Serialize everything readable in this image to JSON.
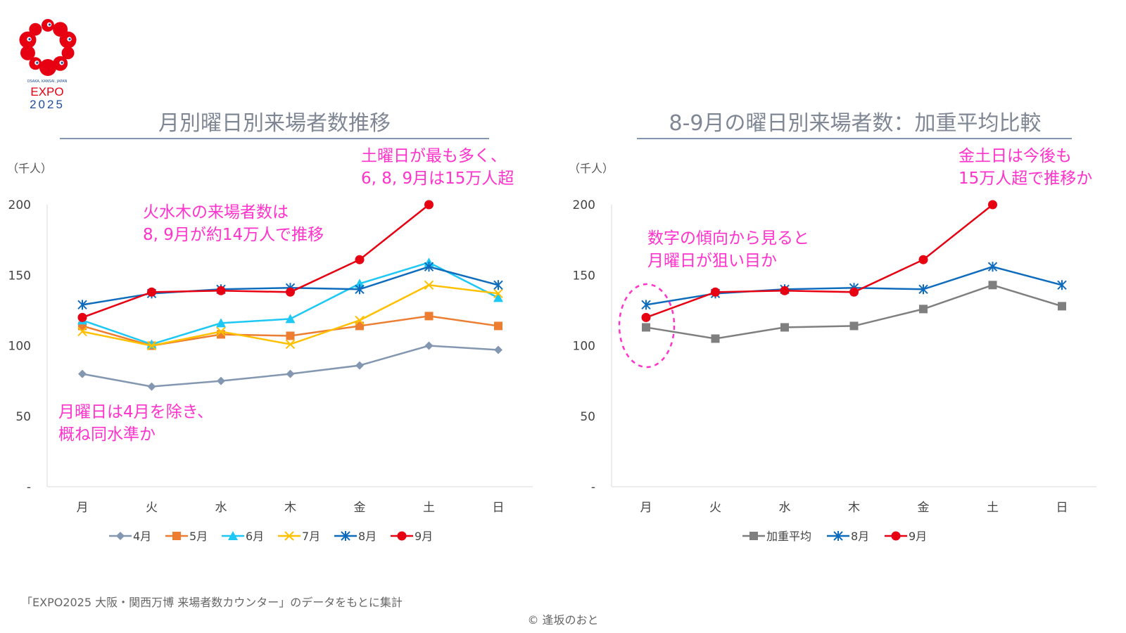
{
  "logo": {
    "line1": "OSAKA, KANSAI, JAPAN",
    "line2": "EXPO",
    "line3": "2025",
    "color": "#e60012",
    "text_color": "#1f4e9c"
  },
  "annotation_color": "#ff33cc",
  "left_panel": {
    "annotations": {
      "sat": "土曜日が最も多く、\n6, 8, 9月は15万人超",
      "mid": "火水木の来場者数は\n8, 9月が約14万人で推移",
      "mon": "月曜日は4月を除き、\n概ね同水準か"
    }
  },
  "right_panel": {
    "annotations": {
      "weekend": "金土日は今後も\n15万人超で推移か",
      "mon": "数字の傾向から見ると\n月曜日が狙い目か"
    }
  },
  "chart_data": [
    {
      "type": "line",
      "title": "月別曜日別来場者数推移",
      "unit_label": "（千人）",
      "categories": [
        "月",
        "火",
        "水",
        "木",
        "金",
        "土",
        "日"
      ],
      "ylim": [
        0,
        200
      ],
      "yticks": [
        "-",
        "50",
        "100",
        "150",
        "200"
      ],
      "legend_position": "bottom",
      "series": [
        {
          "name": "4月",
          "color": "#8497b0",
          "marker": "diamond",
          "values": [
            80,
            71,
            75,
            80,
            86,
            100,
            97
          ]
        },
        {
          "name": "5月",
          "color": "#ed7d31",
          "marker": "square",
          "values": [
            114,
            100,
            108,
            107,
            114,
            121,
            114
          ]
        },
        {
          "name": "6月",
          "color": "#1ec8f5",
          "marker": "triangle",
          "values": [
            118,
            101,
            116,
            119,
            144,
            159,
            134
          ]
        },
        {
          "name": "7月",
          "color": "#ffc000",
          "marker": "x",
          "values": [
            110,
            100,
            110,
            101,
            118,
            143,
            137
          ]
        },
        {
          "name": "8月",
          "color": "#0f6cbd",
          "marker": "star",
          "values": [
            129,
            137,
            140,
            141,
            140,
            156,
            143
          ]
        },
        {
          "name": "9月",
          "color": "#e60012",
          "marker": "circle",
          "values": [
            120,
            138,
            139,
            138,
            161,
            200,
            null
          ]
        }
      ]
    },
    {
      "type": "line",
      "title": "8-9月の曜日別来場者数：加重平均比較",
      "unit_label": "（千人）",
      "categories": [
        "月",
        "火",
        "水",
        "木",
        "金",
        "土",
        "日"
      ],
      "ylim": [
        0,
        200
      ],
      "yticks": [
        "-",
        "50",
        "100",
        "150",
        "200"
      ],
      "legend_position": "bottom",
      "series": [
        {
          "name": "加重平均",
          "color": "#7f7f7f",
          "marker": "square",
          "values": [
            113,
            105,
            113,
            114,
            126,
            143,
            128
          ]
        },
        {
          "name": "8月",
          "color": "#0f6cbd",
          "marker": "star",
          "values": [
            129,
            137,
            140,
            141,
            140,
            156,
            143
          ]
        },
        {
          "name": "9月",
          "color": "#e60012",
          "marker": "circle",
          "values": [
            120,
            138,
            139,
            138,
            161,
            200,
            null
          ]
        }
      ]
    }
  ],
  "footer": {
    "source": "「EXPO2025 大阪・関西万博 来場者数カウンター」のデータをもとに集計",
    "copyright": "© 逢坂のおと"
  }
}
